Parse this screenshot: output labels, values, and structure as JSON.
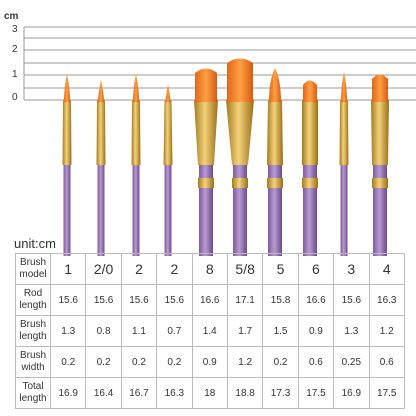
{
  "ruler": {
    "unit": "cm",
    "labels": [
      "3",
      "2",
      "1",
      "0"
    ]
  },
  "unit_label": "unit:cm",
  "table": {
    "rows": [
      [
        "Brush model",
        "1",
        "2/0",
        "2",
        "2",
        "8",
        "5/8",
        "5",
        "6",
        "3",
        "4"
      ],
      [
        "Rod length",
        "15.6",
        "15.6",
        "15.6",
        "15.6",
        "16.6",
        "17.1",
        "15.8",
        "16.6",
        "15.6",
        "16.3"
      ],
      [
        "Brush length",
        "1.3",
        "0.8",
        "1.1",
        "0.7",
        "1.4",
        "1.7",
        "1.5",
        "0.9",
        "1.3",
        "1.2"
      ],
      [
        "Brush width",
        "0.2",
        "0.2",
        "0.2",
        "0.2",
        "0.9",
        "1.2",
        "0.2",
        "0.6",
        "0.25",
        "0.6"
      ],
      [
        "Total length",
        "16.9",
        "16.4",
        "16.7",
        "16.3",
        "18",
        "18.8",
        "17.3",
        "17.5",
        "16.9",
        "17.5"
      ]
    ]
  }
}
